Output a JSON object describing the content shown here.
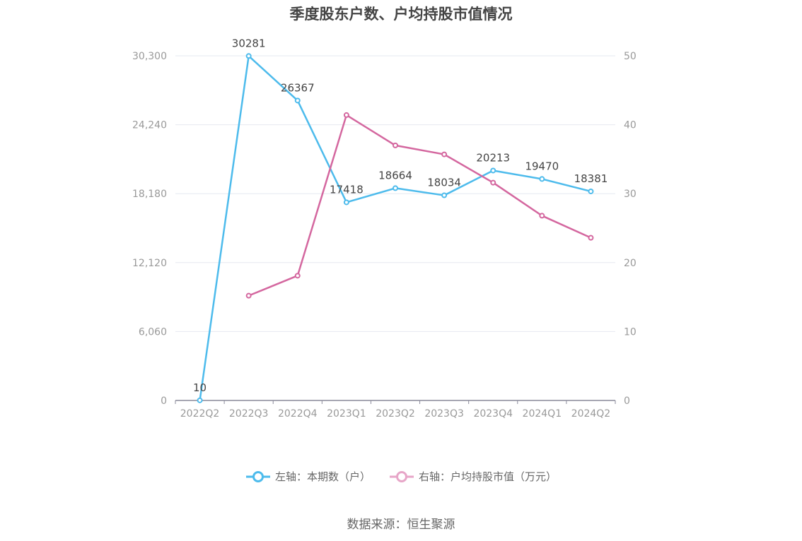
{
  "title": "季度股东户数、户均持股市值情况",
  "source": "数据来源：恒生聚源",
  "colors": {
    "left_series": "#4dbbec",
    "right_series": "#d4679f",
    "grid": "#e6e8f0",
    "axis": "#8a8a9a"
  },
  "legend": [
    {
      "label": "左轴：本期数（户）",
      "icon": "circle-line-icon"
    },
    {
      "label": "右轴：户均持股市值（万元）",
      "icon": "circle-line-icon"
    }
  ],
  "chart_data": {
    "type": "line",
    "categories": [
      "2022Q2",
      "2022Q3",
      "2022Q4",
      "2023Q1",
      "2023Q2",
      "2023Q3",
      "2023Q4",
      "2024Q1",
      "2024Q2"
    ],
    "left_axis": {
      "ticks": [
        "0",
        "6,060",
        "12,120",
        "18,180",
        "24,240",
        "30,300"
      ],
      "ylim": [
        0,
        30300
      ]
    },
    "right_axis": {
      "ticks": [
        "0",
        "10",
        "20",
        "30",
        "40",
        "50"
      ],
      "ylim": [
        0,
        50
      ]
    },
    "series": [
      {
        "name": "左轴：本期数（户）",
        "axis": "left",
        "values": [
          10,
          30281,
          26367,
          17418,
          18664,
          18034,
          20213,
          19470,
          18381
        ],
        "labels": [
          "10",
          "30281",
          "26367",
          "17418",
          "18664",
          "18034",
          "20213",
          "19470",
          "18381"
        ]
      },
      {
        "name": "右轴：户均持股市值（万元）",
        "axis": "right",
        "values": [
          null,
          15.2,
          18.1,
          41.4,
          37.0,
          35.7,
          31.6,
          26.8,
          23.6
        ]
      }
    ],
    "grid": true,
    "legend_position": "bottom"
  }
}
